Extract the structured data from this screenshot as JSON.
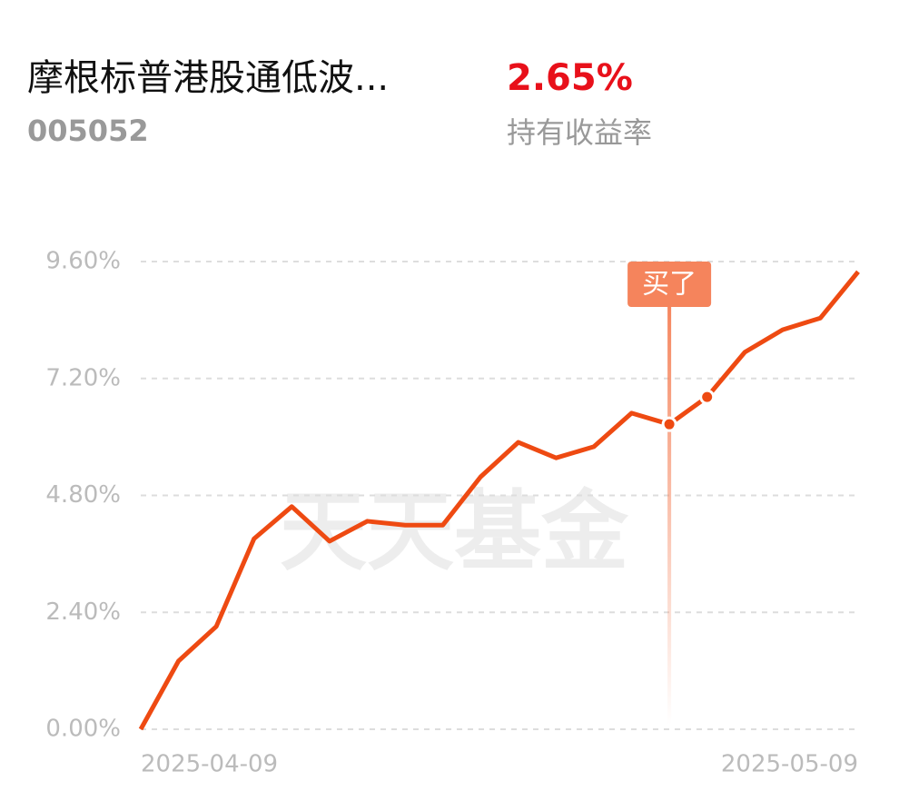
{
  "header": {
    "title": "摩根标普港股通低波...",
    "code": "005052",
    "return_value": "2.65%",
    "return_label": "持有收益率"
  },
  "chart_data": {
    "type": "line",
    "watermark": "天天基金",
    "categories": [
      "2025-04-09",
      null,
      null,
      null,
      null,
      null,
      null,
      null,
      null,
      null,
      null,
      null,
      null,
      null,
      null,
      null,
      null,
      null,
      null,
      "2025-05-09"
    ],
    "series": [
      {
        "name": "收益率",
        "color": "#ee4a12",
        "values": [
          0,
          1.4,
          2.11,
          3.91,
          4.57,
          3.86,
          4.27,
          4.19,
          4.19,
          5.18,
          5.89,
          5.57,
          5.8,
          6.49,
          6.26,
          6.82,
          7.74,
          8.2,
          8.44,
          9.39
        ]
      }
    ],
    "ylim": [
      0,
      9.6
    ],
    "yticks": [
      {
        "value": 0,
        "label": "0.00%"
      },
      {
        "value": 2.4,
        "label": "2.40%"
      },
      {
        "value": 4.8,
        "label": "4.80%"
      },
      {
        "value": 7.2,
        "label": "7.20%"
      },
      {
        "value": 9.6,
        "label": "9.60%"
      }
    ],
    "grid": true,
    "annotation": {
      "text": "买了",
      "index": 14,
      "color": "#f5845c"
    },
    "highlight": [
      14,
      15
    ]
  }
}
